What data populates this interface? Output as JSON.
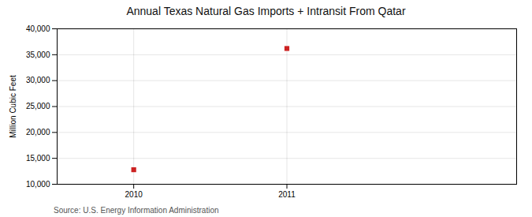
{
  "chart_data": {
    "type": "scatter",
    "title": "Annual Texas Natural Gas Imports + Intransit From Qatar",
    "ylabel": "Million Cubic Feet",
    "source": "Source: U.S. Energy Information Administration",
    "x": [
      2010,
      2011
    ],
    "values": [
      12800,
      36200
    ],
    "color": "#cc2222",
    "marker": "square",
    "xlim": [
      2009.5,
      2012.5
    ],
    "ylim": [
      10000,
      40000
    ],
    "xticks": [
      2010,
      2011
    ],
    "yticks": [
      {
        "value": 10000,
        "label": "10,000"
      },
      {
        "value": 15000,
        "label": "15,000"
      },
      {
        "value": 20000,
        "label": "20,000"
      },
      {
        "value": 25000,
        "label": "25,000"
      },
      {
        "value": 30000,
        "label": "30,000"
      },
      {
        "value": 35000,
        "label": "35,000"
      },
      {
        "value": 40000,
        "label": "40,000"
      }
    ],
    "grid": true
  }
}
